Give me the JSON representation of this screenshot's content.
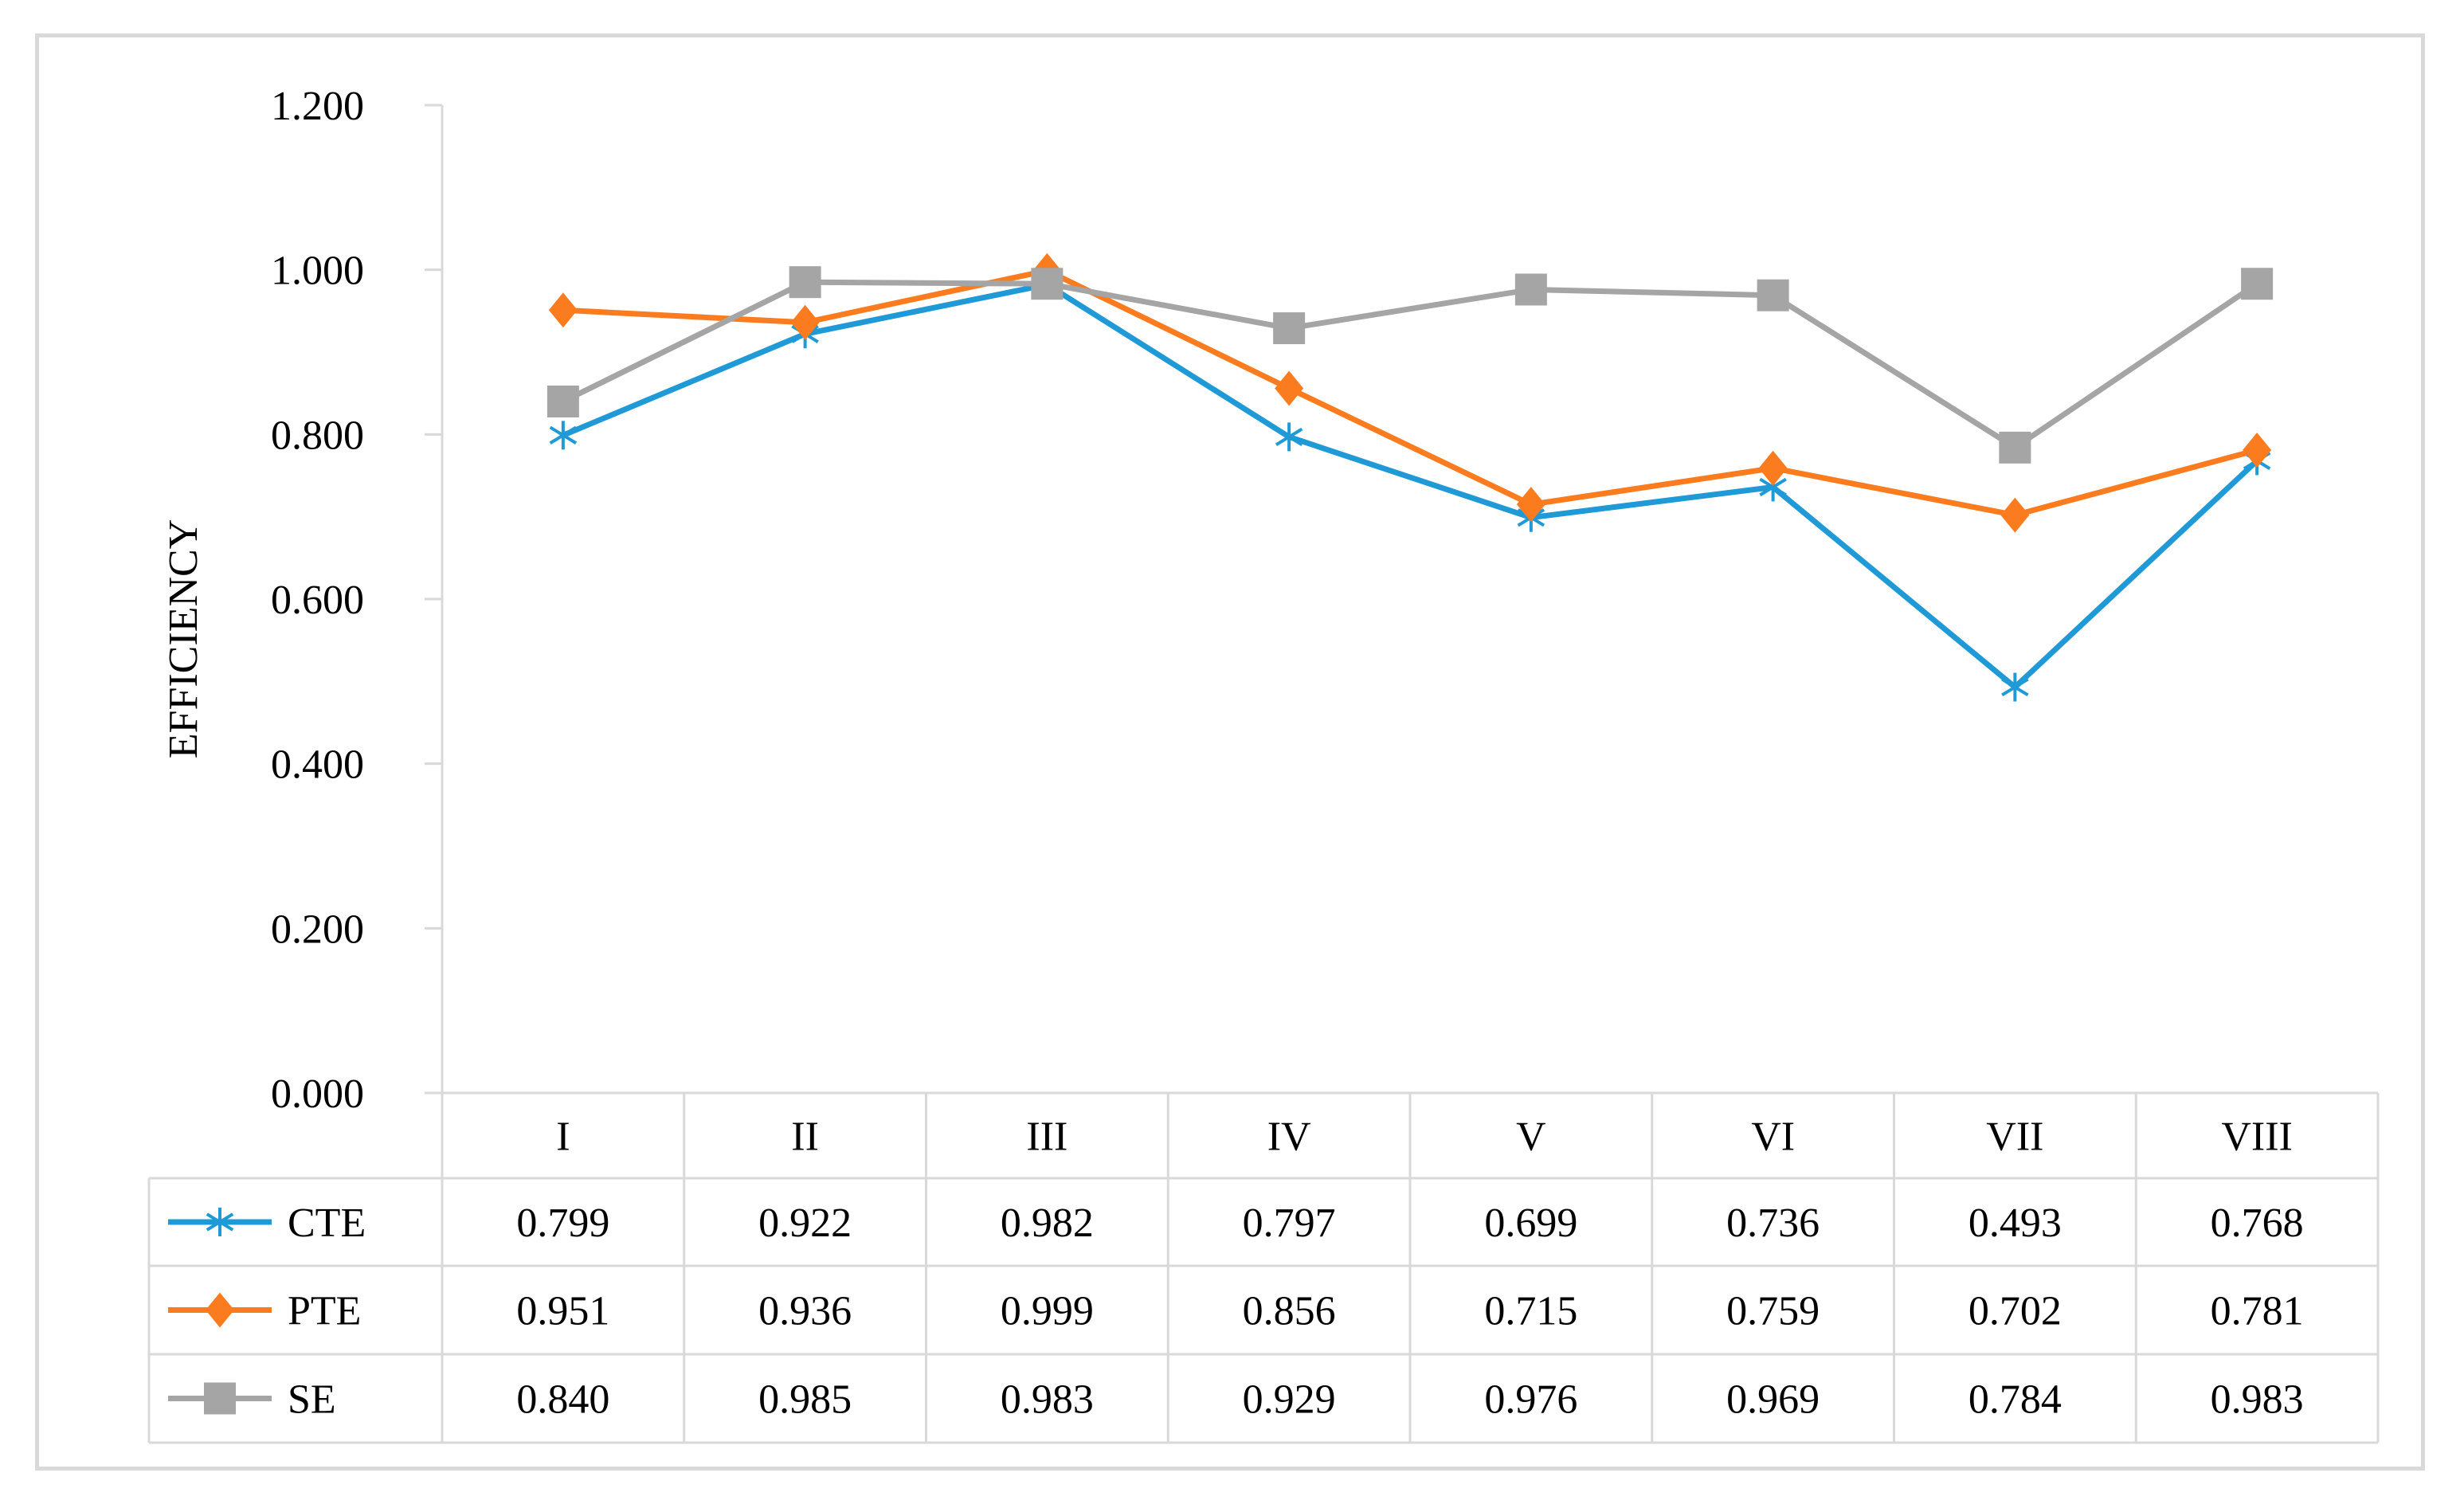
{
  "chart_data": {
    "type": "line",
    "title": "",
    "xlabel": "",
    "ylabel": "EFFICIENCY",
    "ylim": [
      0,
      1.2
    ],
    "yticks": [
      "0.000",
      "0.200",
      "0.400",
      "0.600",
      "0.800",
      "1.000",
      "1.200"
    ],
    "categories": [
      "I",
      "II",
      "III",
      "IV",
      "V",
      "VI",
      "VII",
      "VIII"
    ],
    "grid": false,
    "legend": "data-table",
    "series": [
      {
        "name": "CTE",
        "color": "#1f9ad6",
        "marker": "asterisk",
        "values": [
          0.799,
          0.922,
          0.982,
          0.797,
          0.699,
          0.736,
          0.493,
          0.768
        ],
        "labels": [
          "0.799",
          "0.922",
          "0.982",
          "0.797",
          "0.699",
          "0.736",
          "0.493",
          "0.768"
        ]
      },
      {
        "name": "PTE",
        "color": "#fb7c1f",
        "marker": "diamond",
        "values": [
          0.951,
          0.936,
          0.999,
          0.856,
          0.715,
          0.759,
          0.702,
          0.781
        ],
        "labels": [
          "0.951",
          "0.936",
          "0.999",
          "0.856",
          "0.715",
          "0.759",
          "0.702",
          "0.781"
        ]
      },
      {
        "name": "SE",
        "color": "#a5a5a5",
        "marker": "square",
        "values": [
          0.84,
          0.985,
          0.983,
          0.929,
          0.976,
          0.969,
          0.784,
          0.983
        ],
        "labels": [
          "0.840",
          "0.985",
          "0.983",
          "0.929",
          "0.976",
          "0.969",
          "0.784",
          "0.983"
        ]
      }
    ]
  }
}
